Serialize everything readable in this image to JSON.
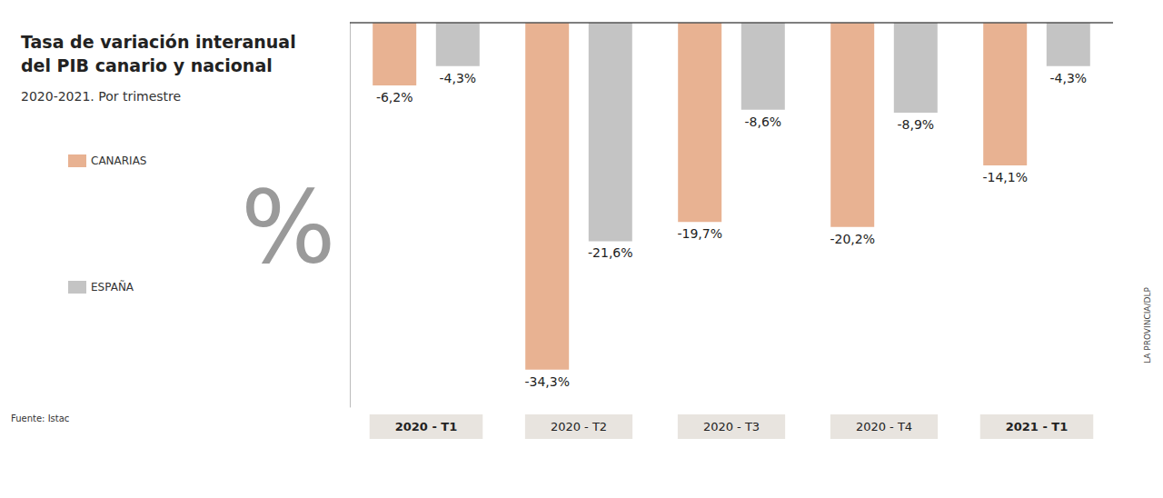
{
  "chart_data": {
    "type": "bar",
    "title": "Tasa de variación interanual del PIB canario y nacional",
    "subtitle": "2020-2021. Por trimestre",
    "categories": [
      "2020 - T1",
      "2020 - T2",
      "2020 - T3",
      "2020 - T4",
      "2021 - T1"
    ],
    "series": [
      {
        "name": "CANARIAS",
        "color": "#e8b292",
        "values": [
          -6.2,
          -34.3,
          -19.7,
          -20.2,
          -14.1
        ],
        "value_labels": [
          "-6,2%",
          "-34,3%",
          "-19,7%",
          "-20,2%",
          "-14,1%"
        ]
      },
      {
        "name": "ESPAÑA",
        "color": "#c4c4c4",
        "values": [
          -4.3,
          -21.6,
          -8.6,
          -8.9,
          -4.3
        ],
        "value_labels": [
          "-4,3%",
          "-21,6%",
          "-8,6%",
          "-8,9%",
          "-4,3%"
        ]
      }
    ],
    "ylim": [
      -38,
      0
    ],
    "data_labels": true,
    "tick_labels": false,
    "grid": false,
    "legend": "left",
    "annotations": [
      "%"
    ],
    "source": "Fuente: Istac",
    "credit": "LA PROVINCIA/DLP"
  }
}
